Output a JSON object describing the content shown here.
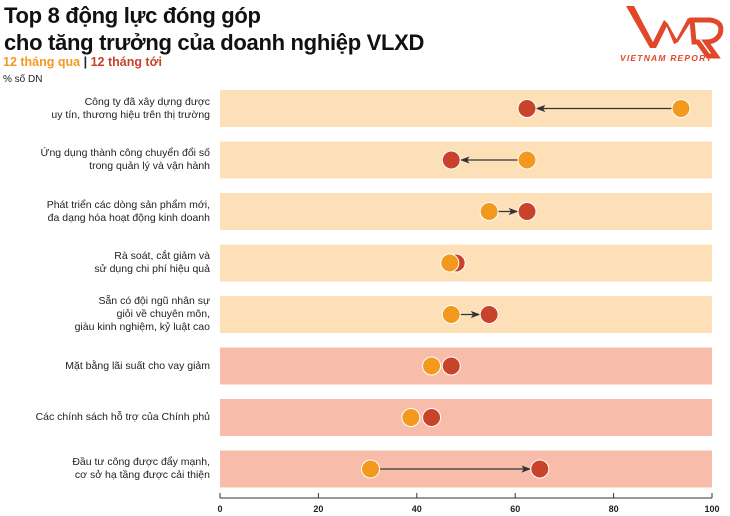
{
  "title_line1": "Top 8 động lực đóng góp",
  "title_line2": "cho tăng trưởng của doanh nghiệp VLXD",
  "legend": {
    "series1": "12 tháng qua",
    "separator": "|",
    "series2": "12 tháng tới"
  },
  "unit": "% số DN",
  "logo": {
    "text": "VIETNAM REPORT",
    "mark": "VNR"
  },
  "colors": {
    "past": "#f39a1e",
    "future": "#c9432a",
    "band_light": "#fde0b8",
    "band_dark": "#f8bcaa",
    "arrow": "#333333"
  },
  "chart_data": {
    "type": "dumbbell",
    "xlim": [
      0,
      100
    ],
    "xticks": [
      0,
      20,
      40,
      60,
      80,
      100
    ],
    "xtick_labels": [
      "0",
      "20",
      "40",
      "60",
      "80",
      "100"
    ],
    "legend_placement": "top-left",
    "categories": [
      [
        "Công ty đã xây dựng được",
        "uy tín, thương hiệu trên thị trường"
      ],
      [
        "Ứng dụng thành công chuyển đổi số",
        "trong quản lý và vận hành"
      ],
      [
        "Phát triển các dòng sản phẩm mới,",
        "đa dạng hóa hoạt động kinh doanh"
      ],
      [
        "Rà soát, cắt giảm và",
        "sử dụng chi phí hiệu quả"
      ],
      [
        "Sẵn có đội ngũ nhân sự",
        "giỏi về chuyên môn,",
        "giàu kinh nghiệm, kỷ luật cao"
      ],
      [
        "Mặt bằng lãi suất cho vay giảm"
      ],
      [
        "Các chính sách hỗ trợ của Chính phủ"
      ],
      [
        "Đầu tư công được đẩy mạnh,",
        "cơ sở hạ tầng được cải thiện"
      ]
    ],
    "series": [
      {
        "name": "12 tháng qua",
        "values": [
          93.7,
          62.4,
          54.7,
          46.7,
          47.0,
          43.0,
          38.8,
          30.6
        ]
      },
      {
        "name": "12 tháng tới",
        "values": [
          62.4,
          47.0,
          62.4,
          48.0,
          54.7,
          47.0,
          43.0,
          65.0
        ]
      }
    ]
  }
}
